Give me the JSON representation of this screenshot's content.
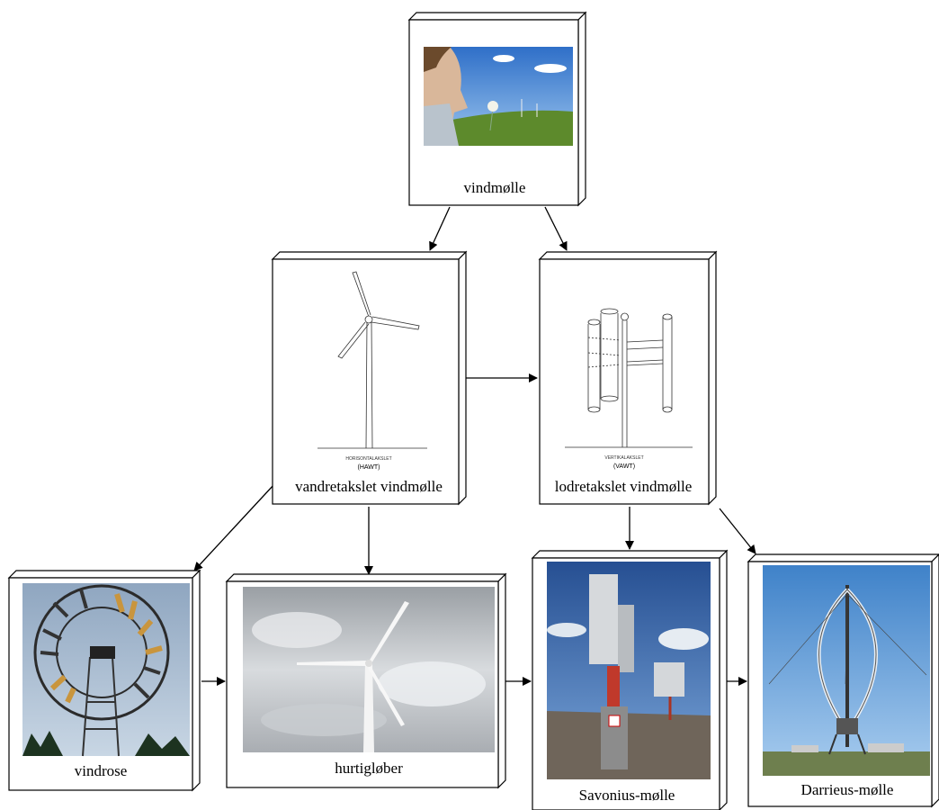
{
  "nodes": [
    {
      "label": "vindmølle"
    },
    {
      "label": "vandretakslet vindmølle",
      "drawing_caption": "HORISONTALAKSLET",
      "drawing_subcaption": "(HAWT)"
    },
    {
      "label": "lodretakslet vindmølle",
      "drawing_caption": "VERTIKALAKSLET",
      "drawing_subcaption": "(VAWT)"
    },
    {
      "label": "vindrose"
    },
    {
      "label": "hurtigløber"
    },
    {
      "label": "Savonius-mølle"
    },
    {
      "label": "Darrieus-mølle"
    }
  ]
}
